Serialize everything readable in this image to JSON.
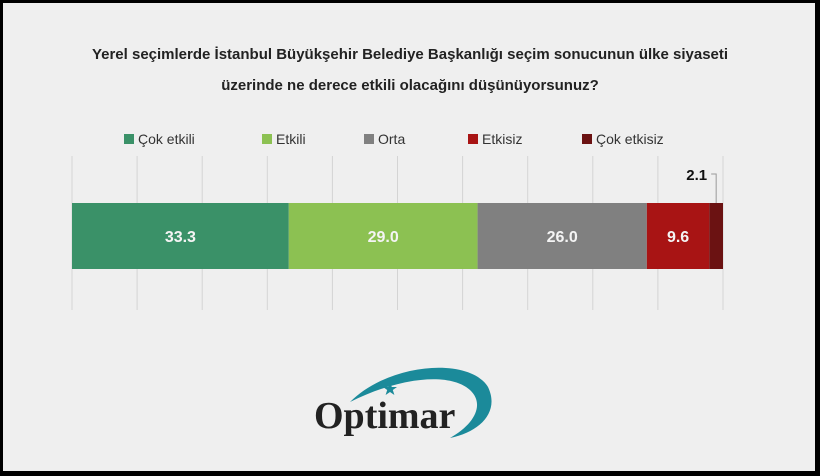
{
  "chart_data": {
    "type": "bar",
    "orientation": "horizontal-stacked-100",
    "title": "Yerel seçimlerde İstanbul Büyükşehir Belediye Başkanlığı seçim sonucunun ülke siyaseti üzerinde ne derece etkili olacağını düşünüyorsunuz?",
    "title_lines": [
      "Yerel seçimlerde İstanbul Büyükşehir Belediye Başkanlığı seçim sonucunun ülke siyaseti",
      "üzerinde ne derece etkili olacağını düşünüyorsunuz?"
    ],
    "xlim": [
      0,
      100
    ],
    "grid": true,
    "legend_position": "top",
    "series": [
      {
        "name": "Çok etkili",
        "value": 33.3,
        "label": "33.3",
        "color": "#3a9168"
      },
      {
        "name": "Etkili",
        "value": 29.0,
        "label": "29.0",
        "color": "#8cc152"
      },
      {
        "name": "Orta",
        "value": 26.0,
        "label": "26.0",
        "color": "#808080"
      },
      {
        "name": "Etkisiz",
        "value": 9.6,
        "label": "9.6",
        "color": "#a81414"
      },
      {
        "name": "Çok etkisiz",
        "value": 2.1,
        "label": "2.1",
        "color": "#6b1212"
      }
    ]
  },
  "logo": {
    "text": "Optimar",
    "color": "#1b8a9a"
  }
}
